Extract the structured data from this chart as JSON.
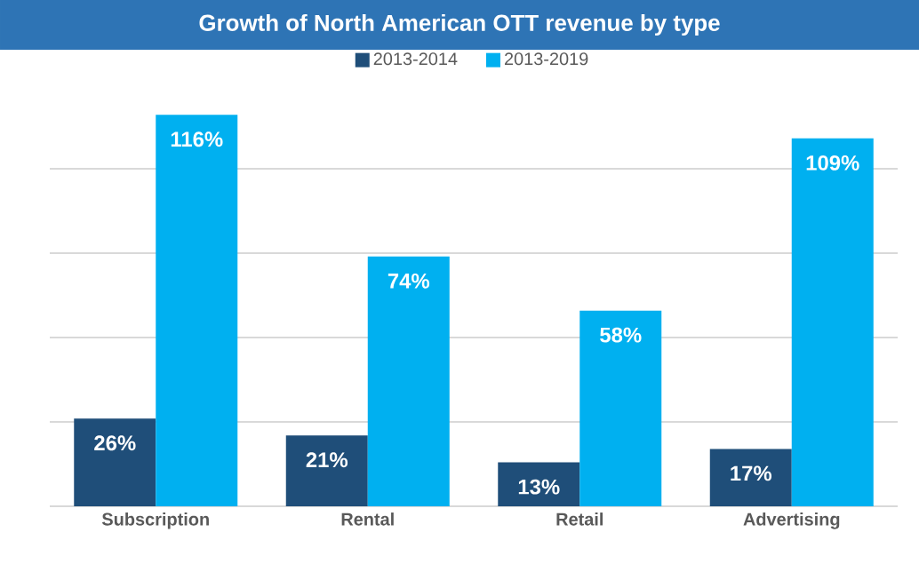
{
  "chart_data": {
    "type": "bar",
    "title": "Growth of North American OTT revenue by type",
    "categories": [
      "Subscription",
      "Rental",
      "Retail",
      "Advertising"
    ],
    "series": [
      {
        "name": "2013-2014",
        "color": "#1f4e79",
        "values": [
          26,
          21,
          13,
          17
        ],
        "value_labels": [
          "26%",
          "21%",
          "13%",
          "17%"
        ]
      },
      {
        "name": "2013-2019",
        "color": "#00b0f0",
        "values": [
          116,
          74,
          58,
          109
        ],
        "value_labels": [
          "116%",
          "74%",
          "58%",
          "109%"
        ]
      }
    ],
    "yticks": [
      {
        "value": 0,
        "label": null
      },
      {
        "value": 25,
        "label": null
      },
      {
        "value": 50,
        "label": null
      },
      {
        "value": 75,
        "label": null
      },
      {
        "value": 100,
        "label": null
      }
    ],
    "tick_labels": "x",
    "grid": "y",
    "legend": "top"
  }
}
